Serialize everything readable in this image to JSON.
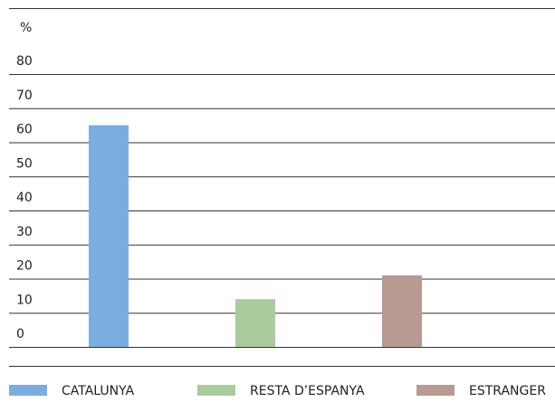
{
  "chart_data": {
    "type": "bar",
    "y_label": "%",
    "categories": [
      "CATALUNYA",
      "RESTA D’ESPANYA",
      "ESTRANGER"
    ],
    "values": [
      65,
      14,
      21
    ],
    "colors": [
      "#7aade0",
      "#a8cc9e",
      "#b89a92"
    ],
    "ylim": [
      0,
      80
    ],
    "yticks": [
      0,
      10,
      20,
      30,
      40,
      50,
      60,
      70,
      80
    ],
    "grid": true,
    "legend": "bottom"
  }
}
